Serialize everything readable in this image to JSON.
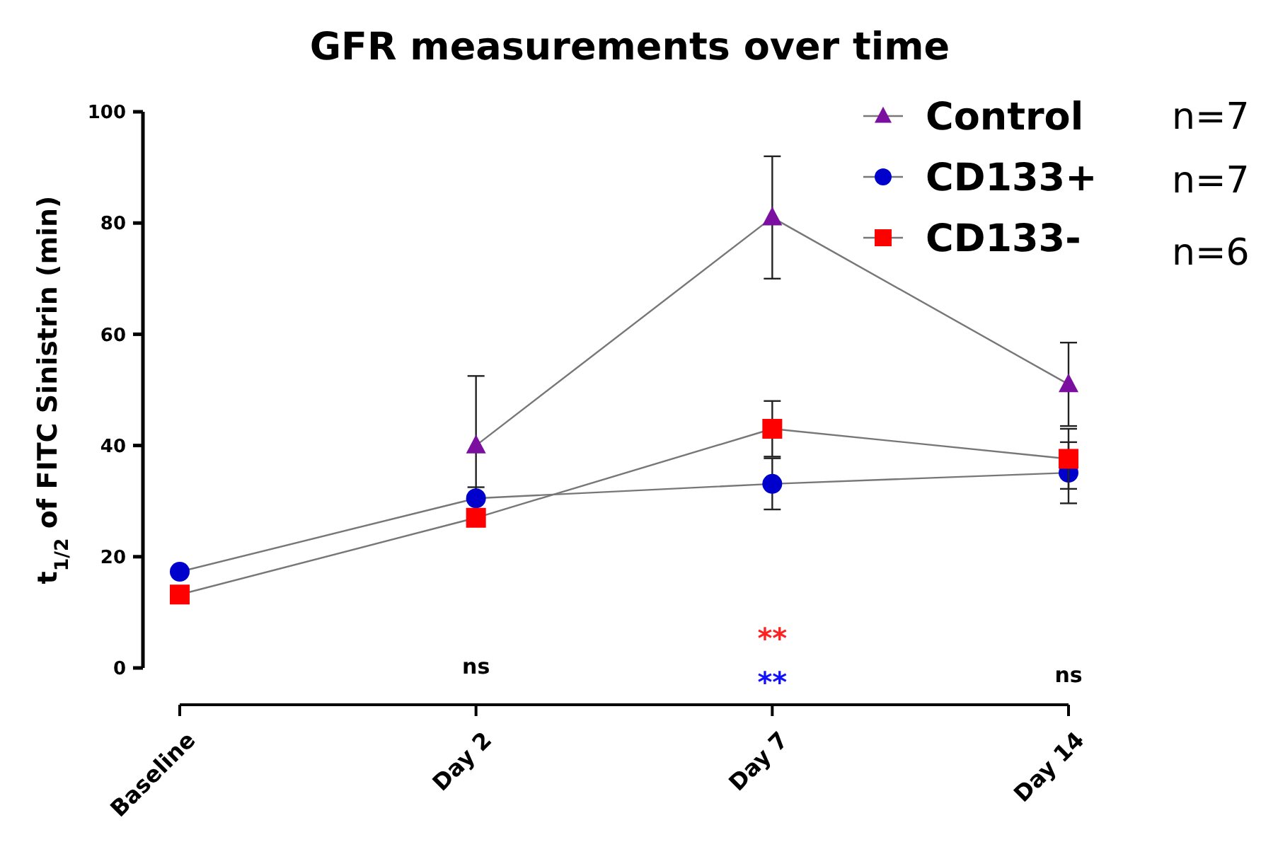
{
  "chart_data": {
    "type": "line",
    "title": "GFR measurements over time",
    "ylabel": "t$_{1/2}$ of FITC Sinistrin (min)",
    "categories": [
      "Baseline",
      "Day 2",
      "Day 7",
      "Day 14"
    ],
    "ylim": [
      0,
      100
    ],
    "yticks": [
      0,
      20,
      40,
      60,
      80,
      100
    ],
    "series": [
      {
        "name": "Control",
        "color": "#7b0fa0",
        "marker": "triangle",
        "values": [
          null,
          40,
          81,
          51
        ],
        "errors": [
          null,
          12.5,
          11,
          7.5
        ]
      },
      {
        "name": "CD133+",
        "color": "#0000cc",
        "marker": "circle",
        "values": [
          17.3,
          30.5,
          33.1,
          35.1
        ],
        "errors": [
          null,
          2,
          4.6,
          5.5
        ]
      },
      {
        "name": "CD133-",
        "color": "#ff0000",
        "marker": "square",
        "values": [
          13.2,
          27,
          43,
          37.6
        ],
        "errors": [
          null,
          null,
          5,
          5.4
        ]
      }
    ],
    "annotations": [
      "ns",
      "**",
      "**",
      "ns",
      "n=7",
      "n=7",
      "n=6"
    ],
    "legend": "top right",
    "grid": false,
    "line_style": "solid"
  }
}
